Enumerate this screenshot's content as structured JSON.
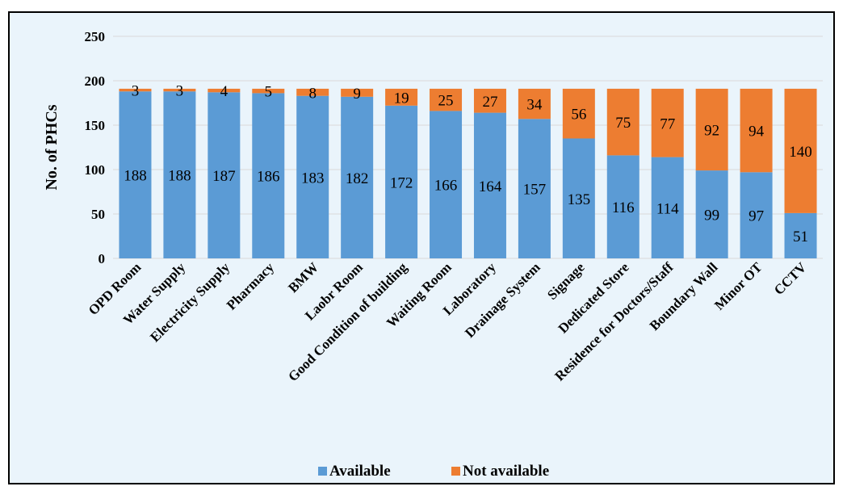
{
  "chart_data": {
    "type": "bar",
    "stacked": true,
    "title": "",
    "xlabel": "",
    "ylabel": "No. of PHCs",
    "ylim": [
      0,
      250
    ],
    "yticks": [
      0,
      50,
      100,
      150,
      200,
      250
    ],
    "grid": true,
    "legend_position": "bottom",
    "categories": [
      "OPD Room",
      "Water Supply",
      "Electricity Supply",
      "Pharmacy",
      "BMW",
      "Laobr Room",
      "Good Condition of building",
      "Waiting Room",
      "Laboratory",
      "Drainage System",
      "Signage",
      "Dedicated Store",
      "Residence for Doctors/Staff",
      "Boundary Wall",
      "Minor OT",
      "CCTV"
    ],
    "series": [
      {
        "name": "Available",
        "color": "#5b9bd5",
        "values": [
          188,
          188,
          187,
          186,
          183,
          182,
          172,
          166,
          164,
          157,
          135,
          116,
          114,
          99,
          97,
          51
        ]
      },
      {
        "name": "Not available",
        "color": "#ed7d31",
        "values": [
          3,
          3,
          4,
          5,
          8,
          9,
          19,
          25,
          27,
          34,
          56,
          75,
          77,
          92,
          94,
          140
        ]
      }
    ]
  }
}
